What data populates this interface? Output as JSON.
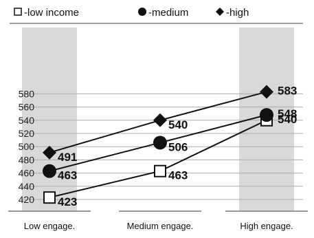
{
  "chart_data": {
    "type": "line",
    "title": "",
    "xlabel": "",
    "ylabel": "",
    "categories": [
      "Low engage.",
      "Medium engage.",
      "High engage."
    ],
    "ylim": [
      410,
      600
    ],
    "yticks": [
      420,
      440,
      460,
      480,
      500,
      520,
      540,
      560,
      580
    ],
    "grid": true,
    "legend_position": "top",
    "series": [
      {
        "name": "low income",
        "marker": "square",
        "values": [
          423,
          463,
          540
        ],
        "labels": [
          "423",
          "463",
          "540"
        ]
      },
      {
        "name": "medium",
        "marker": "circle",
        "values": [
          463,
          506,
          548
        ],
        "labels": [
          "463",
          "506",
          "548"
        ]
      },
      {
        "name": "high",
        "marker": "diamond",
        "values": [
          491,
          540,
          583
        ],
        "labels": [
          "491",
          "540",
          "583"
        ]
      }
    ],
    "legend": [
      {
        "marker": "square",
        "text": "-low income"
      },
      {
        "marker": "circle",
        "text": "-medium"
      },
      {
        "marker": "diamond",
        "text": "-high"
      }
    ],
    "colors": {
      "line": "#111111",
      "marker_fill": "#111111",
      "square_fill": "#ffffff",
      "shaded_band": "#d9d9d9",
      "grid": "#aaaaaa"
    }
  }
}
